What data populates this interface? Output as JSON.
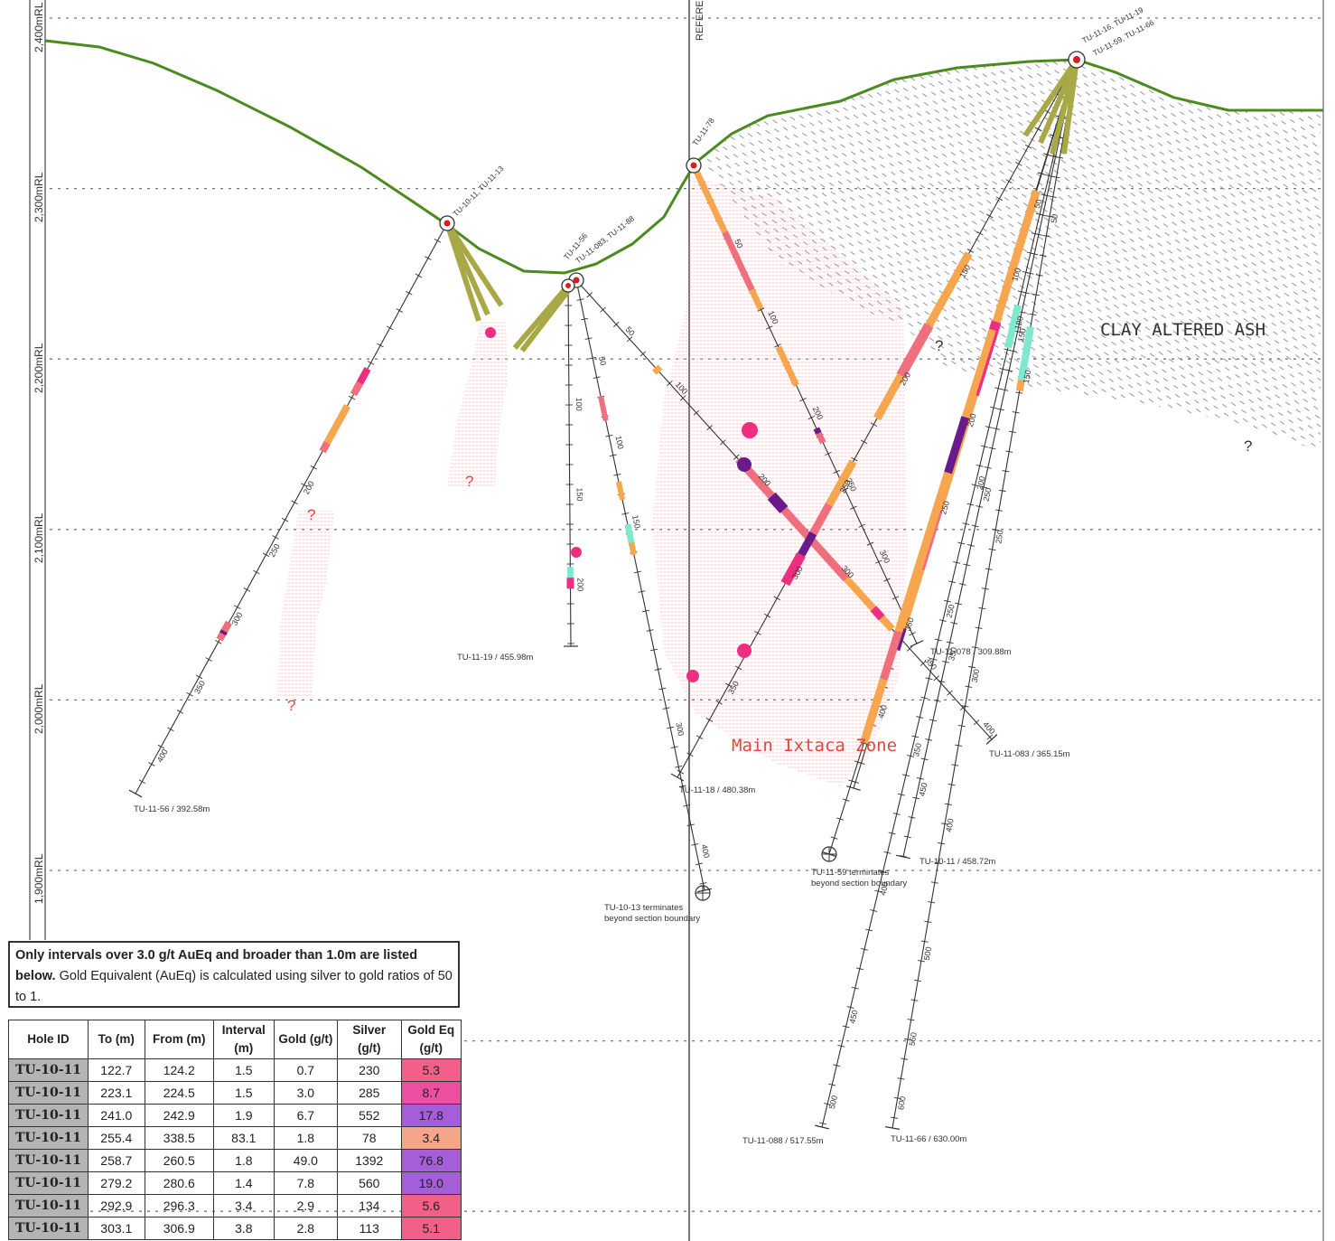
{
  "elevation_labels": [
    {
      "label": "2,400mRL",
      "rl": 2400
    },
    {
      "label": "2,300mRL",
      "rl": 2300
    },
    {
      "label": "2,200mRL",
      "rl": 2200
    },
    {
      "label": "2,100mRL",
      "rl": 2100
    },
    {
      "label": "2,000mRL",
      "rl": 2000
    },
    {
      "label": "1,900mRL",
      "rl": 1900
    }
  ],
  "reference_label": "REFERE",
  "zone_labels": {
    "clay": "CLAY ALTERED ASH",
    "main": "Main Ixtaca Zone",
    "question": "?"
  },
  "collar_labels": [
    "TU-10-11, TU-11-13",
    "TU-11-56",
    "TU-11-083, TU-11-88",
    "TU-11-78",
    "TU-11-16, TU-11-19",
    "TU-11-59, TU-11-66"
  ],
  "hole_end_labels": [
    "TU-11-56 / 392.58m",
    "TU-11-19 / 455.98m",
    "TU-11-18 / 480.38m",
    "TU-11-078 / 309.88m",
    "TU-11-083 / 365.15m",
    "TU-10-11 / 458.72m",
    "TU-11-088 / 517.55m",
    "TU-11-66 / 630.00m",
    "TU-10-13 terminates",
    "beyond section boundary",
    "TU-11-59 terminates",
    "beyond section boundary"
  ],
  "depth_ticks": [
    "50",
    "100",
    "150",
    "200",
    "250",
    "300",
    "350",
    "400",
    "450",
    "500",
    "550",
    "600"
  ],
  "note": {
    "bold": "Only intervals over 3.0 g/t AuEq and broader than 1.0m are listed below.",
    "normal": " Gold Equivalent (AuEq) is calculated using silver to gold ratios of 50 to 1."
  },
  "table": {
    "headers": [
      "Hole ID",
      "To (m)",
      "From (m)",
      "Interval (m)",
      "Gold (g/t)",
      "Silver (g/t)",
      "Gold Eq (g/t)"
    ],
    "rows": [
      {
        "hole": "TU-10-11",
        "to": "122.7",
        "from": "124.2",
        "interval": "1.5",
        "gold": "0.7",
        "silver": "230",
        "aueq": "5.3",
        "color": "#f2608a"
      },
      {
        "hole": "TU-10-11",
        "to": "223.1",
        "from": "224.5",
        "interval": "1.5",
        "gold": "3.0",
        "silver": "285",
        "aueq": "8.7",
        "color": "#ec4fa0"
      },
      {
        "hole": "TU-10-11",
        "to": "241.0",
        "from": "242.9",
        "interval": "1.9",
        "gold": "6.7",
        "silver": "552",
        "aueq": "17.8",
        "color": "#a45ed8"
      },
      {
        "hole": "TU-10-11",
        "to": "255.4",
        "from": "338.5",
        "interval": "83.1",
        "gold": "1.8",
        "silver": "78",
        "aueq": "3.4",
        "color": "#f5a58a"
      },
      {
        "hole": "TU-10-11",
        "to": "258.7",
        "from": "260.5",
        "interval": "1.8",
        "gold": "49.0",
        "silver": "1392",
        "aueq": "76.8",
        "color": "#a45ed8"
      },
      {
        "hole": "TU-10-11",
        "to": "279.2",
        "from": "280.6",
        "interval": "1.4",
        "gold": "7.8",
        "silver": "560",
        "aueq": "19.0",
        "color": "#a45ed8"
      },
      {
        "hole": "TU-10-11",
        "to": "292.9",
        "from": "296.3",
        "interval": "3.4",
        "gold": "2.9",
        "silver": "134",
        "aueq": "5.6",
        "color": "#f2608a"
      },
      {
        "hole": "TU-10-11",
        "to": "303.1",
        "from": "306.9",
        "interval": "3.8",
        "gold": "2.8",
        "silver": "113",
        "aueq": "5.1",
        "color": "#f2608a"
      }
    ]
  },
  "colors": {
    "topography": "#4b8a1e",
    "orange_interval": "#f7a650",
    "pink_interval": "#ef6f7e",
    "magenta_interval": "#ee2f7f",
    "purple_interval": "#6a1b8a",
    "cyan_interval": "#7fe8cf",
    "upper_trace": "#a9a846",
    "halo": "#f3c2c6",
    "reference": "#666666"
  }
}
